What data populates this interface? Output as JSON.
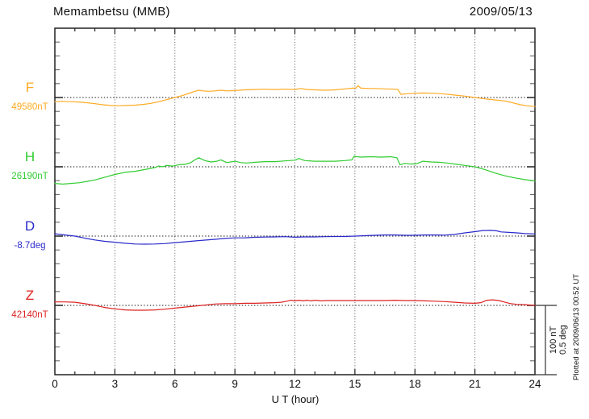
{
  "chart_data": {
    "type": "line",
    "title": "Memambetsu (MMB)",
    "date": "2009/05/13",
    "xlabel": "U T (hour)",
    "x_range": [
      0,
      24
    ],
    "x_ticks": [
      0,
      3,
      6,
      9,
      12,
      15,
      18,
      21,
      24
    ],
    "grid": "dotted vertical line every 3 hours; dotted horizontal baseline per component",
    "legend_position": "left margin, one colored label per trace",
    "scale_bar": {
      "nT_label": "100 nT",
      "deg_label": "0.5 deg",
      "nT_value": 100,
      "deg_value": 0.5
    },
    "plotted_at": "Plotted at 2009/06/13 00:52 UT",
    "y_minor_tick_step_nT": 20,
    "series": [
      {
        "id": "F",
        "label": "F",
        "base_label": "49580nT",
        "base_value": 49580,
        "unit": "nT",
        "color": "#FFAA22",
        "points": [
          [
            0,
            -6
          ],
          [
            0.4,
            -5.5
          ],
          [
            0.8,
            -6
          ],
          [
            1.2,
            -6.5
          ],
          [
            1.6,
            -7.5
          ],
          [
            2,
            -9
          ],
          [
            2.4,
            -10.5
          ],
          [
            2.8,
            -11.5
          ],
          [
            3.2,
            -12
          ],
          [
            3.6,
            -11.5
          ],
          [
            4,
            -11
          ],
          [
            4.4,
            -10
          ],
          [
            4.8,
            -8.5
          ],
          [
            5.2,
            -6
          ],
          [
            5.6,
            -3
          ],
          [
            6,
            0
          ],
          [
            6.4,
            3
          ],
          [
            6.8,
            7
          ],
          [
            7,
            9
          ],
          [
            7.2,
            10.5
          ],
          [
            7.4,
            9.5
          ],
          [
            7.7,
            9
          ],
          [
            8,
            9.5
          ],
          [
            8.3,
            10.5
          ],
          [
            8.6,
            9.5
          ],
          [
            9,
            10
          ],
          [
            9.5,
            11
          ],
          [
            10,
            11.5
          ],
          [
            10.5,
            12
          ],
          [
            11,
            11.5
          ],
          [
            11.5,
            12
          ],
          [
            12,
            11.5
          ],
          [
            12.3,
            13
          ],
          [
            12.6,
            11.5
          ],
          [
            13,
            11
          ],
          [
            13.5,
            10.5
          ],
          [
            14,
            11
          ],
          [
            14.5,
            12.5
          ],
          [
            14.9,
            13.5
          ],
          [
            15.05,
            13.5
          ],
          [
            15.15,
            17
          ],
          [
            15.3,
            13.5
          ],
          [
            15.7,
            13
          ],
          [
            16,
            13
          ],
          [
            16.5,
            12.5
          ],
          [
            17,
            12
          ],
          [
            17.15,
            11.5
          ],
          [
            17.3,
            4.5
          ],
          [
            17.6,
            5.5
          ],
          [
            18,
            6
          ],
          [
            18.4,
            6.5
          ],
          [
            19,
            6
          ],
          [
            19.5,
            5
          ],
          [
            20,
            3.5
          ],
          [
            20.5,
            2
          ],
          [
            21,
            0
          ],
          [
            21.5,
            -2
          ],
          [
            22,
            -3.5
          ],
          [
            22.5,
            -5
          ],
          [
            22.8,
            -7
          ],
          [
            23.2,
            -10
          ],
          [
            23.6,
            -12
          ],
          [
            24,
            -13
          ]
        ]
      },
      {
        "id": "H",
        "label": "H",
        "base_label": "26190nT",
        "base_value": 26190,
        "unit": "nT",
        "color": "#30CC30",
        "points": [
          [
            0,
            -24
          ],
          [
            0.4,
            -25
          ],
          [
            0.8,
            -24
          ],
          [
            1.2,
            -23
          ],
          [
            1.6,
            -21
          ],
          [
            2,
            -19
          ],
          [
            2.5,
            -15
          ],
          [
            3,
            -11
          ],
          [
            3.5,
            -8
          ],
          [
            4,
            -6.5
          ],
          [
            4.5,
            -4
          ],
          [
            5,
            -1
          ],
          [
            5.2,
            1
          ],
          [
            5.4,
            0
          ],
          [
            5.6,
            2
          ],
          [
            5.9,
            1
          ],
          [
            6.2,
            3
          ],
          [
            6.5,
            3.5
          ],
          [
            6.8,
            6
          ],
          [
            7,
            10
          ],
          [
            7.2,
            13
          ],
          [
            7.5,
            9
          ],
          [
            7.8,
            7
          ],
          [
            8.1,
            8
          ],
          [
            8.3,
            10
          ],
          [
            8.6,
            6
          ],
          [
            9,
            8
          ],
          [
            9.3,
            6
          ],
          [
            9.6,
            5.5
          ],
          [
            10,
            6.5
          ],
          [
            10.5,
            7.5
          ],
          [
            11,
            7.5
          ],
          [
            11.5,
            8.5
          ],
          [
            12,
            9.5
          ],
          [
            12.2,
            12
          ],
          [
            12.5,
            9
          ],
          [
            13,
            8
          ],
          [
            13.5,
            8
          ],
          [
            14,
            8
          ],
          [
            14.5,
            9
          ],
          [
            14.85,
            10
          ],
          [
            14.95,
            15
          ],
          [
            15.3,
            14
          ],
          [
            15.8,
            14.5
          ],
          [
            16.3,
            14
          ],
          [
            16.8,
            14.5
          ],
          [
            17.1,
            13
          ],
          [
            17.25,
            3
          ],
          [
            17.5,
            5
          ],
          [
            17.8,
            4
          ],
          [
            18.1,
            4.5
          ],
          [
            18.4,
            8
          ],
          [
            18.8,
            7
          ],
          [
            19.2,
            6.5
          ],
          [
            19.6,
            5.5
          ],
          [
            20,
            4
          ],
          [
            20.5,
            2
          ],
          [
            21,
            0
          ],
          [
            21.5,
            -4
          ],
          [
            22,
            -9
          ],
          [
            22.5,
            -13
          ],
          [
            23,
            -16
          ],
          [
            23.5,
            -18.5
          ],
          [
            24,
            -20.5
          ]
        ]
      },
      {
        "id": "D",
        "label": "D",
        "base_label": "-8.7deg",
        "base_value": -8.7,
        "unit": "deg",
        "color": "#2A2ACC",
        "points": [
          [
            0,
            0.017
          ],
          [
            0.5,
            0.008
          ],
          [
            1,
            0
          ],
          [
            1.5,
            -0.015
          ],
          [
            2,
            -0.028
          ],
          [
            2.5,
            -0.038
          ],
          [
            3,
            -0.044
          ],
          [
            3.5,
            -0.052
          ],
          [
            4,
            -0.057
          ],
          [
            4.5,
            -0.058
          ],
          [
            5,
            -0.057
          ],
          [
            5.5,
            -0.054
          ],
          [
            6,
            -0.047
          ],
          [
            6.5,
            -0.041
          ],
          [
            7,
            -0.035
          ],
          [
            7.5,
            -0.029
          ],
          [
            8,
            -0.023
          ],
          [
            8.5,
            -0.017
          ],
          [
            9,
            -0.013
          ],
          [
            9.5,
            -0.012
          ],
          [
            10,
            -0.009
          ],
          [
            10.5,
            -0.007
          ],
          [
            11,
            -0.006
          ],
          [
            11.5,
            -0.004
          ],
          [
            12,
            -0.008
          ],
          [
            12.5,
            -0.006
          ],
          [
            13,
            -0.006
          ],
          [
            13.5,
            -0.004
          ],
          [
            14,
            -0.003
          ],
          [
            14.5,
            -0.003
          ],
          [
            15,
            0
          ],
          [
            15.5,
            0.003
          ],
          [
            16,
            0.006
          ],
          [
            16.5,
            0.008
          ],
          [
            17,
            0.008
          ],
          [
            17.5,
            0.006
          ],
          [
            18,
            0.006
          ],
          [
            18.5,
            0.008
          ],
          [
            19,
            0.008
          ],
          [
            19.5,
            0.007
          ],
          [
            20,
            0.012
          ],
          [
            20.5,
            0.023
          ],
          [
            21,
            0.032
          ],
          [
            21.4,
            0.04
          ],
          [
            21.8,
            0.041
          ],
          [
            22.1,
            0.038
          ],
          [
            22.3,
            0.03
          ],
          [
            22.7,
            0.027
          ],
          [
            23.1,
            0.023
          ],
          [
            23.5,
            0.018
          ],
          [
            24,
            0.015
          ]
        ]
      },
      {
        "id": "Z",
        "label": "Z",
        "base_label": "42140nT",
        "base_value": 42140,
        "unit": "nT",
        "color": "#DD2222",
        "points": [
          [
            0,
            5
          ],
          [
            0.5,
            5
          ],
          [
            1,
            4.5
          ],
          [
            1.5,
            2.5
          ],
          [
            2,
            0
          ],
          [
            2.5,
            -3
          ],
          [
            3,
            -5
          ],
          [
            3.5,
            -6.5
          ],
          [
            4,
            -7
          ],
          [
            4.5,
            -7
          ],
          [
            5,
            -6.5
          ],
          [
            5.5,
            -5.5
          ],
          [
            6,
            -4
          ],
          [
            6.5,
            -2.5
          ],
          [
            7,
            -1
          ],
          [
            7.5,
            0.5
          ],
          [
            8,
            2
          ],
          [
            8.5,
            2.5
          ],
          [
            9,
            2.5
          ],
          [
            9.5,
            3
          ],
          [
            10,
            3
          ],
          [
            10.5,
            3.5
          ],
          [
            11,
            4
          ],
          [
            11.3,
            4.5
          ],
          [
            11.6,
            6
          ],
          [
            11.8,
            7.5
          ],
          [
            12,
            6.5
          ],
          [
            12.2,
            7.5
          ],
          [
            12.4,
            6.5
          ],
          [
            12.6,
            7.5
          ],
          [
            12.8,
            6.5
          ],
          [
            13,
            7.5
          ],
          [
            13.3,
            6.5
          ],
          [
            13.6,
            7
          ],
          [
            14,
            7
          ],
          [
            14.5,
            7
          ],
          [
            15,
            7
          ],
          [
            15.5,
            7
          ],
          [
            16,
            7
          ],
          [
            16.5,
            7
          ],
          [
            17,
            7.5
          ],
          [
            17.5,
            7
          ],
          [
            18,
            7
          ],
          [
            18.5,
            6.5
          ],
          [
            19,
            6
          ],
          [
            19.5,
            5.5
          ],
          [
            20,
            4.5
          ],
          [
            20.5,
            3.5
          ],
          [
            21,
            3
          ],
          [
            21.3,
            4
          ],
          [
            21.6,
            7.5
          ],
          [
            21.9,
            8
          ],
          [
            22.2,
            7
          ],
          [
            22.5,
            4.5
          ],
          [
            22.8,
            2.5
          ],
          [
            23.1,
            1.5
          ],
          [
            23.5,
            1
          ],
          [
            24,
            0
          ]
        ]
      }
    ]
  }
}
